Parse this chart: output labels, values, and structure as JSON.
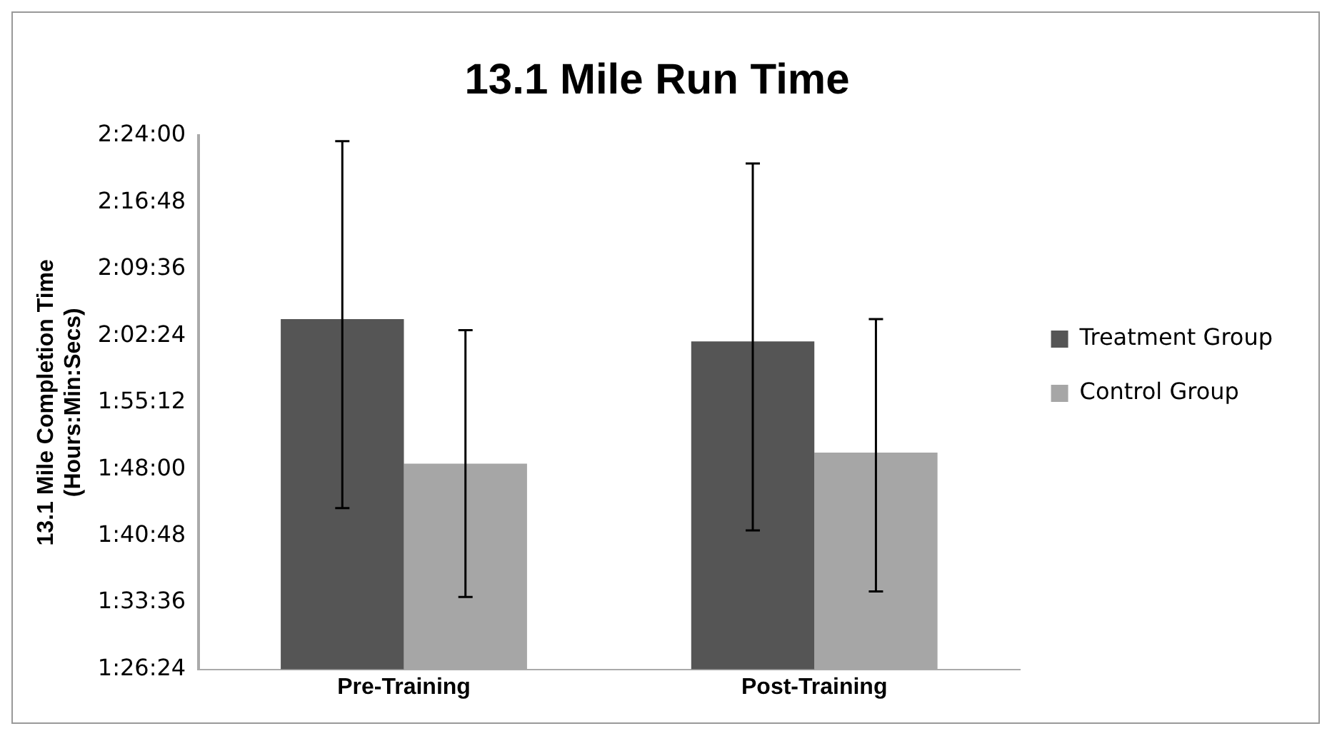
{
  "chart_data": {
    "type": "bar",
    "title": "13.1 Mile Run Time",
    "ylabel": "13.1 Mile Completion Time\n(Hours:Min:Secs)",
    "categories": [
      "Pre-Training",
      "Post-Training"
    ],
    "series": [
      {
        "name": "Treatment Group",
        "color": "#555555",
        "values": [
          2.07,
          2.03
        ],
        "errors": [
          [
            1.73,
            2.39
          ],
          [
            1.69,
            2.35
          ]
        ]
      },
      {
        "name": "Control Group",
        "color": "#a6a6a6",
        "values": [
          1.81,
          1.83
        ],
        "errors": [
          [
            1.57,
            2.05
          ],
          [
            1.58,
            2.07
          ]
        ]
      }
    ],
    "ylim": [
      1.44,
      2.4
    ],
    "yticks": [
      {
        "value": 1.44,
        "label": "1:26:24"
      },
      {
        "value": 1.56,
        "label": "1:33:36"
      },
      {
        "value": 1.68,
        "label": "1:40:48"
      },
      {
        "value": 1.8,
        "label": "1:48:00"
      },
      {
        "value": 1.92,
        "label": "1:55:12"
      },
      {
        "value": 2.04,
        "label": "2:02:24"
      },
      {
        "value": 2.16,
        "label": "2:09:36"
      },
      {
        "value": 2.28,
        "label": "2:16:48"
      },
      {
        "value": 2.4,
        "label": "2:24:00"
      }
    ],
    "grid": false,
    "legend": "right"
  }
}
